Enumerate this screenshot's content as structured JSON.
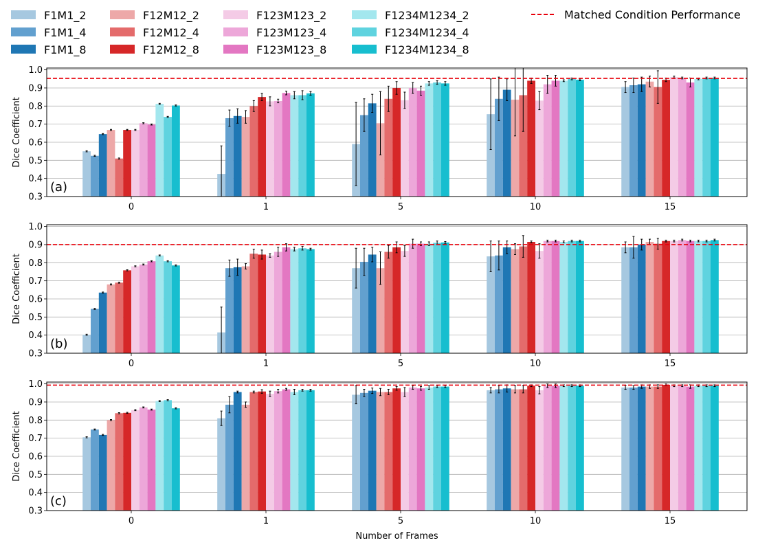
{
  "legend": {
    "items": [
      {
        "label": "F1M1_2",
        "color": "#a6c8e0"
      },
      {
        "label": "F1M1_4",
        "color": "#62a0cf"
      },
      {
        "label": "F1M1_8",
        "color": "#1f77b4"
      },
      {
        "label": "F12M12_2",
        "color": "#eda8a8"
      },
      {
        "label": "F12M12_4",
        "color": "#e46b6b"
      },
      {
        "label": "F12M12_8",
        "color": "#d62728"
      },
      {
        "label": "F123M123_2",
        "color": "#f4cbe6"
      },
      {
        "label": "F123M123_4",
        "color": "#eda7d9"
      },
      {
        "label": "F123M123_8",
        "color": "#e377c2"
      },
      {
        "label": "F1234M1234_2",
        "color": "#a3e7ee"
      },
      {
        "label": "F1234M1234_4",
        "color": "#5fd3df"
      },
      {
        "label": "F1234M1234_8",
        "color": "#17becf"
      }
    ],
    "matched_label": "Matched Condition Performance",
    "matched_color": "#e8000b"
  },
  "chart_data": [
    {
      "type": "bar",
      "panel_label": "(a)",
      "categories": [
        "0",
        "1",
        "5",
        "10",
        "15"
      ],
      "xlabel": "",
      "ylabel": "Dice Coefficient",
      "ylim": [
        0.3,
        1.01
      ],
      "yticks": [
        "0.3",
        "0.4",
        "0.5",
        "0.6",
        "0.7",
        "0.8",
        "0.9",
        "1.0"
      ],
      "grid": true,
      "matched_value": 0.953,
      "series": [
        {
          "name": "F1M1_2",
          "values": [
            0.55,
            0.425,
            0.59,
            0.755,
            0.905
          ],
          "errors": [
            0.003,
            0.155,
            0.23,
            0.195,
            0.03
          ]
        },
        {
          "name": "F1M1_4",
          "values": [
            0.525,
            0.733,
            0.75,
            0.84,
            0.915
          ],
          "errors": [
            0.003,
            0.045,
            0.09,
            0.12,
            0.04
          ]
        },
        {
          "name": "F1M1_8",
          "values": [
            0.645,
            0.745,
            0.815,
            0.89,
            0.92
          ],
          "errors": [
            0.003,
            0.04,
            0.05,
            0.06,
            0.04
          ]
        },
        {
          "name": "F12M12_2",
          "values": [
            0.668,
            0.74,
            0.705,
            0.835,
            0.935
          ],
          "errors": [
            0.003,
            0.035,
            0.175,
            0.2,
            0.03
          ]
        },
        {
          "name": "F12M12_4",
          "values": [
            0.51,
            0.8,
            0.84,
            0.86,
            0.905
          ],
          "errors": [
            0.003,
            0.03,
            0.07,
            0.2,
            0.09
          ]
        },
        {
          "name": "F12M12_8",
          "values": [
            0.668,
            0.85,
            0.9,
            0.94,
            0.945
          ],
          "errors": [
            0.003,
            0.02,
            0.035,
            0.015,
            0.01
          ]
        },
        {
          "name": "F123M123_2",
          "values": [
            0.668,
            0.826,
            0.832,
            0.83,
            0.96
          ],
          "errors": [
            0.003,
            0.025,
            0.045,
            0.05,
            0.005
          ]
        },
        {
          "name": "F123M123_4",
          "values": [
            0.705,
            0.828,
            0.9,
            0.92,
            0.955
          ],
          "errors": [
            0.003,
            0.01,
            0.03,
            0.05,
            0.005
          ]
        },
        {
          "name": "F123M123_8",
          "values": [
            0.698,
            0.872,
            0.885,
            0.94,
            0.93
          ],
          "errors": [
            0.003,
            0.01,
            0.025,
            0.03,
            0.025
          ]
        },
        {
          "name": "F1234M1234_2",
          "values": [
            0.812,
            0.86,
            0.925,
            0.94,
            0.95
          ],
          "errors": [
            0.003,
            0.02,
            0.01,
            0.005,
            0.005
          ]
        },
        {
          "name": "F1234M1234_4",
          "values": [
            0.74,
            0.86,
            0.93,
            0.95,
            0.955
          ],
          "errors": [
            0.003,
            0.025,
            0.01,
            0.005,
            0.005
          ]
        },
        {
          "name": "F1234M1234_8",
          "values": [
            0.803,
            0.87,
            0.925,
            0.945,
            0.955
          ],
          "errors": [
            0.003,
            0.01,
            0.01,
            0.005,
            0.005
          ]
        }
      ]
    },
    {
      "type": "bar",
      "panel_label": "(b)",
      "categories": [
        "0",
        "1",
        "5",
        "10",
        "15"
      ],
      "xlabel": "",
      "ylabel": "Dice Coefficient",
      "ylim": [
        0.3,
        1.01
      ],
      "yticks": [
        "0.3",
        "0.4",
        "0.5",
        "0.6",
        "0.7",
        "0.8",
        "0.9",
        "1.0"
      ],
      "grid": true,
      "matched_value": 0.9,
      "series": [
        {
          "name": "F1M1_2",
          "values": [
            0.402,
            0.415,
            0.77,
            0.835,
            0.885
          ],
          "errors": [
            0.003,
            0.14,
            0.11,
            0.085,
            0.03
          ]
        },
        {
          "name": "F1M1_4",
          "values": [
            0.545,
            0.77,
            0.805,
            0.84,
            0.885
          ],
          "errors": [
            0.003,
            0.045,
            0.075,
            0.08,
            0.06
          ]
        },
        {
          "name": "F1M1_8",
          "values": [
            0.635,
            0.775,
            0.845,
            0.885,
            0.9
          ],
          "errors": [
            0.003,
            0.045,
            0.04,
            0.035,
            0.03
          ]
        },
        {
          "name": "F12M12_2",
          "values": [
            0.68,
            0.78,
            0.77,
            0.875,
            0.915
          ],
          "errors": [
            0.003,
            0.015,
            0.09,
            0.03,
            0.015
          ]
        },
        {
          "name": "F12M12_4",
          "values": [
            0.69,
            0.85,
            0.86,
            0.89,
            0.905
          ],
          "errors": [
            0.003,
            0.025,
            0.035,
            0.06,
            0.03
          ]
        },
        {
          "name": "F12M12_8",
          "values": [
            0.758,
            0.845,
            0.885,
            0.915,
            0.92
          ],
          "errors": [
            0.003,
            0.025,
            0.03,
            0.005,
            0.005
          ]
        },
        {
          "name": "F123M123_2",
          "values": [
            0.78,
            0.84,
            0.865,
            0.865,
            0.92
          ],
          "errors": [
            0.003,
            0.01,
            0.03,
            0.04,
            0.005
          ]
        },
        {
          "name": "F123M123_4",
          "values": [
            0.79,
            0.86,
            0.905,
            0.92,
            0.925
          ],
          "errors": [
            0.003,
            0.025,
            0.025,
            0.005,
            0.005
          ]
        },
        {
          "name": "F123M123_8",
          "values": [
            0.808,
            0.885,
            0.905,
            0.92,
            0.92
          ],
          "errors": [
            0.003,
            0.02,
            0.01,
            0.005,
            0.005
          ]
        },
        {
          "name": "F1234M1234_2",
          "values": [
            0.84,
            0.875,
            0.905,
            0.915,
            0.92
          ],
          "errors": [
            0.003,
            0.01,
            0.01,
            0.005,
            0.005
          ]
        },
        {
          "name": "F1234M1234_4",
          "values": [
            0.808,
            0.88,
            0.91,
            0.92,
            0.92
          ],
          "errors": [
            0.003,
            0.01,
            0.01,
            0.005,
            0.005
          ]
        },
        {
          "name": "F1234M1234_8",
          "values": [
            0.785,
            0.875,
            0.912,
            0.92,
            0.925
          ],
          "errors": [
            0.003,
            0.005,
            0.005,
            0.005,
            0.005
          ]
        }
      ]
    },
    {
      "type": "bar",
      "panel_label": "(c)",
      "categories": [
        "0",
        "1",
        "5",
        "10",
        "15"
      ],
      "xlabel": "Number of Frames",
      "ylabel": "Dice Coefficient",
      "ylim": [
        0.3,
        1.01
      ],
      "yticks": [
        "0.3",
        "0.4",
        "0.5",
        "0.6",
        "0.7",
        "0.8",
        "0.9",
        "1.0"
      ],
      "grid": true,
      "matched_value": 0.993,
      "series": [
        {
          "name": "F1M1_2",
          "values": [
            0.705,
            0.81,
            0.94,
            0.965,
            0.98
          ],
          "errors": [
            0.003,
            0.04,
            0.05,
            0.015,
            0.01
          ]
        },
        {
          "name": "F1M1_4",
          "values": [
            0.748,
            0.885,
            0.95,
            0.97,
            0.98
          ],
          "errors": [
            0.003,
            0.045,
            0.02,
            0.02,
            0.01
          ]
        },
        {
          "name": "F1M1_8",
          "values": [
            0.718,
            0.955,
            0.962,
            0.975,
            0.985
          ],
          "errors": [
            0.003,
            0.005,
            0.015,
            0.02,
            0.01
          ]
        },
        {
          "name": "F12M12_2",
          "values": [
            0.8,
            0.885,
            0.955,
            0.97,
            0.985
          ],
          "errors": [
            0.003,
            0.015,
            0.02,
            0.02,
            0.01
          ]
        },
        {
          "name": "F12M12_4",
          "values": [
            0.838,
            0.955,
            0.955,
            0.97,
            0.985
          ],
          "errors": [
            0.003,
            0.005,
            0.015,
            0.02,
            0.01
          ]
        },
        {
          "name": "F12M12_8",
          "values": [
            0.84,
            0.958,
            0.975,
            0.99,
            0.995
          ],
          "errors": [
            0.003,
            0.01,
            0.01,
            0.005,
            0.005
          ]
        },
        {
          "name": "F123M123_2",
          "values": [
            0.855,
            0.945,
            0.955,
            0.965,
            0.99
          ],
          "errors": [
            0.003,
            0.015,
            0.025,
            0.02,
            0.005
          ]
        },
        {
          "name": "F123M123_4",
          "values": [
            0.87,
            0.96,
            0.98,
            0.99,
            0.99
          ],
          "errors": [
            0.003,
            0.01,
            0.01,
            0.01,
            0.005
          ]
        },
        {
          "name": "F123M123_8",
          "values": [
            0.858,
            0.97,
            0.975,
            0.99,
            0.985
          ],
          "errors": [
            0.003,
            0.005,
            0.01,
            0.01,
            0.01
          ]
        },
        {
          "name": "F1234M1234_2",
          "values": [
            0.905,
            0.955,
            0.98,
            0.99,
            0.99
          ],
          "errors": [
            0.003,
            0.015,
            0.01,
            0.005,
            0.005
          ]
        },
        {
          "name": "F1234M1234_4",
          "values": [
            0.91,
            0.965,
            0.985,
            0.99,
            0.99
          ],
          "errors": [
            0.003,
            0.005,
            0.005,
            0.005,
            0.005
          ]
        },
        {
          "name": "F1234M1234_8",
          "values": [
            0.865,
            0.965,
            0.985,
            0.99,
            0.99
          ],
          "errors": [
            0.003,
            0.005,
            0.005,
            0.005,
            0.005
          ]
        }
      ]
    }
  ]
}
